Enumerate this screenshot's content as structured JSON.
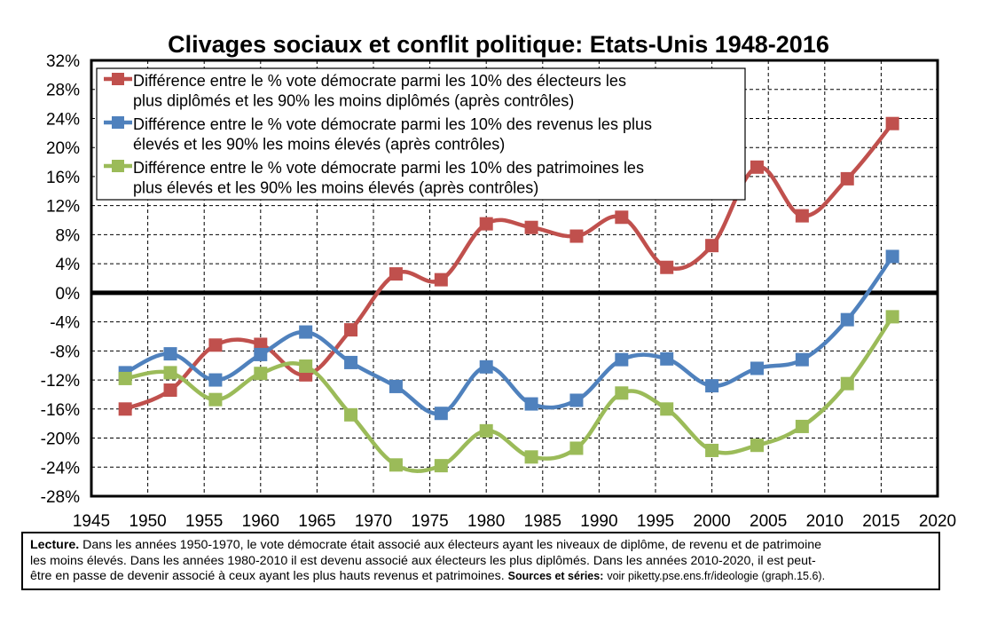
{
  "chart_data": {
    "type": "line",
    "title": "Clivages sociaux et conflit politique: Etats-Unis 1948-2016",
    "xlim": [
      1945,
      2020
    ],
    "x_ticks": [
      1945,
      1950,
      1955,
      1960,
      1965,
      1970,
      1975,
      1980,
      1985,
      1990,
      1995,
      2000,
      2005,
      2010,
      2015,
      2020
    ],
    "ylim": [
      -28,
      32
    ],
    "y_ticks": [
      32,
      28,
      24,
      20,
      16,
      12,
      8,
      4,
      0,
      -4,
      -8,
      -12,
      -16,
      -20,
      -24,
      -28
    ],
    "y_tick_labels": [
      "32%",
      "28%",
      "24%",
      "20%",
      "16%",
      "12%",
      "8%",
      "4%",
      "0%",
      "-4%",
      "-8%",
      "-12%",
      "-16%",
      "-20%",
      "-24%",
      "-28%"
    ],
    "grid": true,
    "legend_position": "top-left",
    "x": [
      1948,
      1952,
      1956,
      1960,
      1964,
      1968,
      1972,
      1976,
      1980,
      1984,
      1988,
      1992,
      1996,
      2000,
      2004,
      2008,
      2012,
      2016
    ],
    "series": [
      {
        "name": "Différence entre le % vote démocrate parmi les 10% des électeurs les plus diplômés et les 90% les moins diplômés (après contrôles)",
        "legend_lines": [
          "Différence entre le % vote démocrate parmi les 10% des électeurs les",
          "plus diplômés et les 90% les moins diplômés (après contrôles)"
        ],
        "color": "#c0504d",
        "values": [
          -16.0,
          -13.4,
          -7.2,
          -7.1,
          -11.3,
          -5.1,
          2.6,
          1.8,
          9.5,
          9.0,
          7.8,
          10.4,
          3.5,
          6.5,
          17.3,
          10.6,
          15.7,
          23.3
        ]
      },
      {
        "name": "Différence entre le % vote démocrate parmi les 10% des revenus les plus élevés et les 90% les moins élevés (après contrôles)",
        "legend_lines": [
          "Différence entre le % vote démocrate parmi les 10% des revenus les plus",
          "élevés et les 90% les moins élevés (après contrôles)"
        ],
        "color": "#4f81bd",
        "values": [
          -11.0,
          -8.4,
          -12.0,
          -8.5,
          -5.4,
          -9.6,
          -12.9,
          -16.6,
          -10.2,
          -15.3,
          -14.8,
          -9.2,
          -9.1,
          -12.8,
          -10.4,
          -9.2,
          -3.7,
          5.0
        ]
      },
      {
        "name": "Différence entre le % vote démocrate parmi les 10% des patrimoines les plus élevés et les 90% les moins élevés (après contrôles)",
        "legend_lines": [
          "Différence entre le % vote démocrate parmi les 10% des patrimoines les",
          "plus élevés et les 90% les moins élevés (après contrôles)"
        ],
        "color": "#9bbb59",
        "values": [
          -11.8,
          -11.0,
          -14.7,
          -11.1,
          -10.1,
          -16.8,
          -23.7,
          -23.8,
          -19.0,
          -22.6,
          -21.4,
          -13.8,
          -16.0,
          -21.7,
          -21.0,
          -18.4,
          -12.5,
          -3.3
        ]
      }
    ]
  },
  "note": {
    "lecture_label": "Lecture.",
    "line1": "Dans les années 1950-1970, le vote démocrate était associé aux électeurs ayant les niveaux de diplôme, de revenu et de patrimoine",
    "line2": "les moins élevés. Dans les années 1980-2010 il est devenu associé aux électeurs les plus diplômés. Dans les années 2010-2020, il est peut-",
    "line3": "être en passe de devenir associé à ceux ayant les plus hauts revenus et patrimoines.",
    "sources_label": "Sources et séries:",
    "sources_text": "voir piketty.pse.ens.fr/ideologie (graph.15.6)."
  }
}
